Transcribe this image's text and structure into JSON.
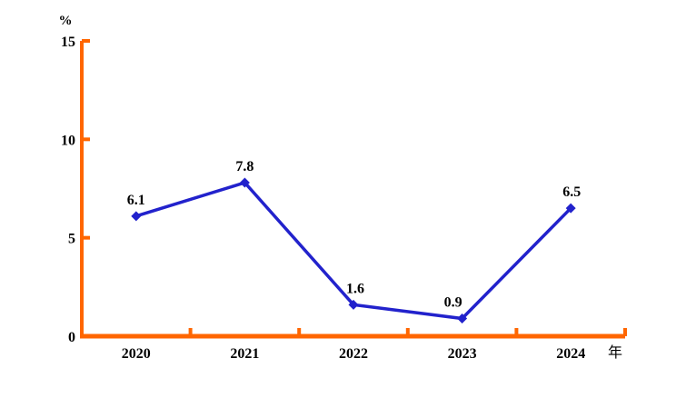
{
  "chart_data": {
    "type": "line",
    "title": "",
    "categories": [
      "2020",
      "2021",
      "2022",
      "2023",
      "2024"
    ],
    "values": [
      6.1,
      7.8,
      1.6,
      0.9,
      6.5
    ],
    "value_labels": [
      "6.1",
      "7.8",
      "1.6",
      "0.9",
      "6.5"
    ],
    "ylabel": "%",
    "xlabel": "年",
    "yticks": [
      "0",
      "5",
      "10",
      "15"
    ],
    "ytick_values": [
      0,
      5,
      10,
      15
    ],
    "ylim": [
      0,
      15
    ],
    "grid": false,
    "legend": "none",
    "marker": "diamond",
    "colors": {
      "axis": "#FF6600",
      "series": "#2222CC",
      "text": "#000000"
    }
  }
}
